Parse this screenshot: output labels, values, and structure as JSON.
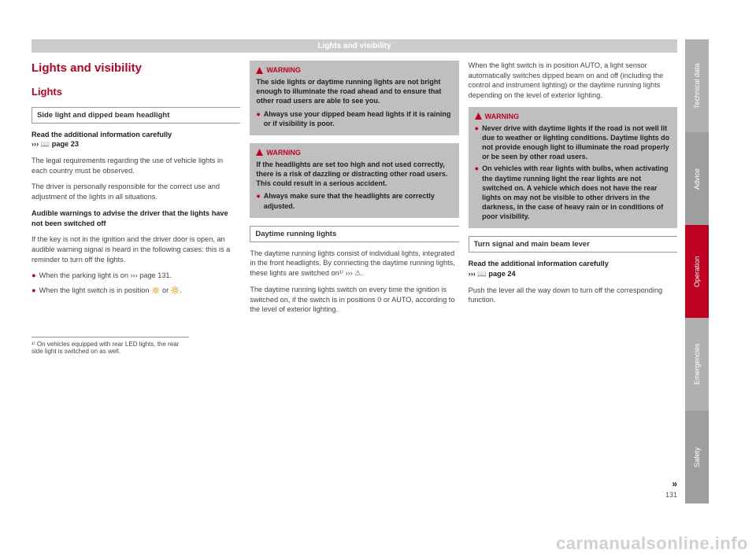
{
  "header": "Lights and visibility",
  "col1": {
    "title": "Lights and visibility",
    "section": "Lights",
    "subheading": "Side light and dipped beam headlight",
    "p1_bold": "Read the additional information carefully",
    "p1_ref": "››› 📖 page 23",
    "p2": "The legal requirements regarding the use of vehicle lights in each country must be observed.",
    "p3": "The driver is personally responsible for the correct use and adjustment of the lights in all situations.",
    "p4_bold": "Audible warnings to advise the driver that the lights have not been switched off",
    "p5": "If the key is not in the ignition and the driver door is open, an audible warning signal is heard in the following cases: this is a reminder to turn off the lights.",
    "b1": "When the parking light is on ››› page 131.",
    "b2": "When the light switch is in position 🔅 or 🔆."
  },
  "col2": {
    "w1": {
      "head": "WARNING",
      "p1": "The side lights or daytime running lights are not bright enough to illuminate the road ahead and to ensure that other road users are able to see you.",
      "b1": "Always use your dipped beam head lights if it is raining or if visibility is poor."
    },
    "w2": {
      "head": "WARNING",
      "p1": "If the headlights are set too high and not used correctly, there is a risk of dazzling or distracting other road users. This could result in a serious accident.",
      "b1": "Always make sure that the headlights are correctly adjusted."
    },
    "subheading": "Daytime running lights",
    "p1": "The daytime running lights consist of individual lights, integrated in the front headlights. By connecting the daytime running lights, these lights are switched on¹⁾ ››› ⚠.",
    "p2": "The daytime running lights switch on every time the ignition is switched on, if the switch is in positions 0 or AUTO, according to the level of exterior lighting."
  },
  "col3": {
    "p1": "When the light switch is in position AUTO, a light sensor automatically switches dipped beam on and off (including the control and instrument lighting) or the daytime running lights depending on the level of exterior lighting.",
    "w1": {
      "head": "WARNING",
      "b1": "Never drive with daytime lights if the road is not well lit due to weather or lighting conditions. Daytime lights do not provide enough light to illuminate the road properly or be seen by other road users.",
      "b2": "On vehicles with rear lights with bulbs, when activating the daytime running light the rear lights are not switched on. A vehicle which does not have the rear lights on may not be visible to other drivers in the darkness, in the case of heavy rain or in conditions of poor visibility."
    },
    "subheading": "Turn signal and main beam lever",
    "p2_bold": "Read the additional information carefully",
    "p2_ref": "››› 📖 page 24",
    "p3": "Push the lever all the way down to turn off the corresponding function."
  },
  "footnote": "¹⁾ On vehicles equipped with rear LED lights, the rear side light is switched on as well.",
  "tabs": [
    {
      "label": "Technical data",
      "bg": "#b0b0b0"
    },
    {
      "label": "Advice",
      "bg": "#9e9e9e"
    },
    {
      "label": "Operation",
      "bg": "#c00020"
    },
    {
      "label": "Emergencies",
      "bg": "#b0b0b0"
    },
    {
      "label": "Safety",
      "bg": "#9e9e9e"
    }
  ],
  "pagenum": "131",
  "arrows": "»",
  "watermark": "carmanualsonline.info"
}
